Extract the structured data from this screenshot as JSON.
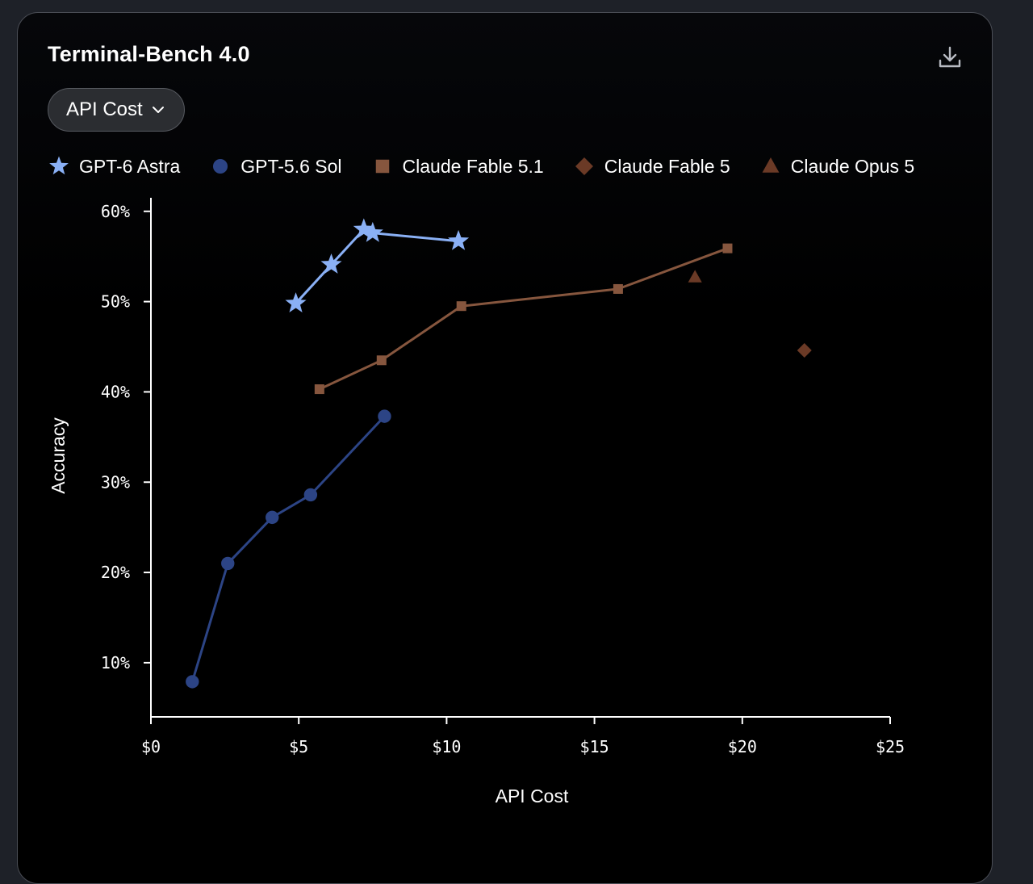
{
  "title": "Terminal-Bench 4.0",
  "controls": {
    "download_icon": "download-icon",
    "metric_select": "API Cost",
    "chevron_icon": "chevron-down-icon"
  },
  "colors": {
    "background": "#000000",
    "axis": "#ffffff",
    "gpt6_astra": "#8ab0f5",
    "gpt56_sol": "#2c4485",
    "claude_fable_51": "#86563e",
    "claude_fable_5": "#6b3a26",
    "claude_opus_5": "#6b3a26"
  },
  "chart_data": {
    "type": "line",
    "xlabel": "API Cost",
    "ylabel": "Accuracy",
    "xlim": [
      0,
      25
    ],
    "ylim": [
      4,
      61.5
    ],
    "xticks": [
      {
        "value": 0,
        "label": "$0"
      },
      {
        "value": 5,
        "label": "$5"
      },
      {
        "value": 10,
        "label": "$10"
      },
      {
        "value": 15,
        "label": "$15"
      },
      {
        "value": 20,
        "label": "$20"
      },
      {
        "value": 25,
        "label": "$25"
      }
    ],
    "yticks": [
      {
        "value": 10,
        "label": "10%"
      },
      {
        "value": 20,
        "label": "20%"
      },
      {
        "value": 30,
        "label": "30%"
      },
      {
        "value": 40,
        "label": "40%"
      },
      {
        "value": 50,
        "label": "50%"
      },
      {
        "value": 60,
        "label": "60%"
      }
    ],
    "grid": false,
    "legend_position": "top",
    "series": [
      {
        "name": "GPT-6 Astra",
        "marker": "star",
        "color": "#8ab0f5",
        "line": true,
        "points": [
          [
            4.9,
            49.8
          ],
          [
            6.1,
            54.1
          ],
          [
            7.2,
            58.0
          ],
          [
            7.5,
            57.6
          ],
          [
            10.4,
            56.7
          ]
        ]
      },
      {
        "name": "GPT-5.6 Sol",
        "marker": "circle",
        "color": "#2c4485",
        "line": true,
        "points": [
          [
            1.4,
            7.9
          ],
          [
            2.6,
            21.0
          ],
          [
            4.1,
            26.1
          ],
          [
            5.4,
            28.6
          ],
          [
            7.9,
            37.3
          ]
        ]
      },
      {
        "name": "Claude Fable 5.1",
        "marker": "square",
        "color": "#86563e",
        "line": true,
        "points": [
          [
            5.7,
            40.3
          ],
          [
            7.8,
            43.5
          ],
          [
            10.5,
            49.5
          ],
          [
            15.8,
            51.4
          ],
          [
            19.5,
            55.9
          ]
        ]
      },
      {
        "name": "Claude Fable 5",
        "marker": "diamond",
        "color": "#6b3a26",
        "line": false,
        "points": [
          [
            22.1,
            44.6
          ]
        ]
      },
      {
        "name": "Claude Opus 5",
        "marker": "triangle",
        "color": "#6b3a26",
        "line": false,
        "points": [
          [
            18.4,
            52.7
          ]
        ]
      }
    ]
  }
}
